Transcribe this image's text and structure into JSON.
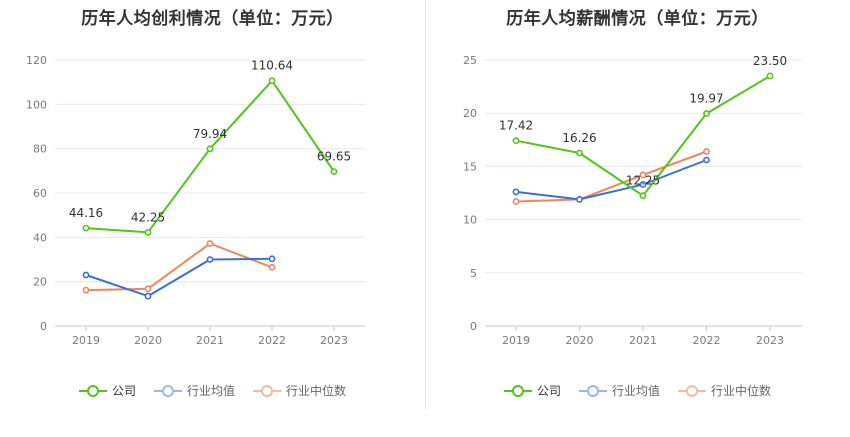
{
  "legend": {
    "company": "公司",
    "industry_avg": "行业均值",
    "industry_median": "行业中位数"
  },
  "colors": {
    "company": "#52c41a",
    "industry_avg": "#3b6fd6",
    "industry_median": "#f0865f"
  },
  "chart_data": [
    {
      "type": "line",
      "title": "历年人均创利情况（单位：万元）",
      "categories": [
        "2019",
        "2020",
        "2021",
        "2022",
        "2023"
      ],
      "ylim": [
        0,
        120
      ],
      "yticks": [
        0,
        20,
        40,
        60,
        80,
        100,
        120
      ],
      "grid": true,
      "legend_position": "bottom",
      "series": [
        {
          "key": "company",
          "name": "公司",
          "values": [
            44.16,
            42.25,
            79.94,
            110.64,
            69.65
          ],
          "labels": [
            "44.16",
            "42.25",
            "79.94",
            "110.64",
            "69.65"
          ]
        },
        {
          "key": "industry_avg",
          "name": "行业均值",
          "values": [
            23,
            13.5,
            30,
            30.3,
            null
          ]
        },
        {
          "key": "industry_median",
          "name": "行业中位数",
          "values": [
            16.2,
            16.8,
            37.2,
            26.5,
            null
          ]
        }
      ]
    },
    {
      "type": "line",
      "title": "历年人均薪酬情况（单位：万元）",
      "categories": [
        "2019",
        "2020",
        "2021",
        "2022",
        "2023"
      ],
      "ylim": [
        0,
        25
      ],
      "yticks": [
        0,
        5,
        10,
        15,
        20,
        25
      ],
      "grid": true,
      "legend_position": "bottom",
      "series": [
        {
          "key": "company",
          "name": "公司",
          "values": [
            17.42,
            16.26,
            12.25,
            19.97,
            23.5
          ],
          "labels": [
            "17.42",
            "16.26",
            "12.25",
            "19.97",
            "23.50"
          ]
        },
        {
          "key": "industry_avg",
          "name": "行业均值",
          "values": [
            12.6,
            11.9,
            13.3,
            15.6,
            null
          ]
        },
        {
          "key": "industry_median",
          "name": "行业中位数",
          "values": [
            11.7,
            11.9,
            14.2,
            16.4,
            null
          ]
        }
      ]
    }
  ]
}
